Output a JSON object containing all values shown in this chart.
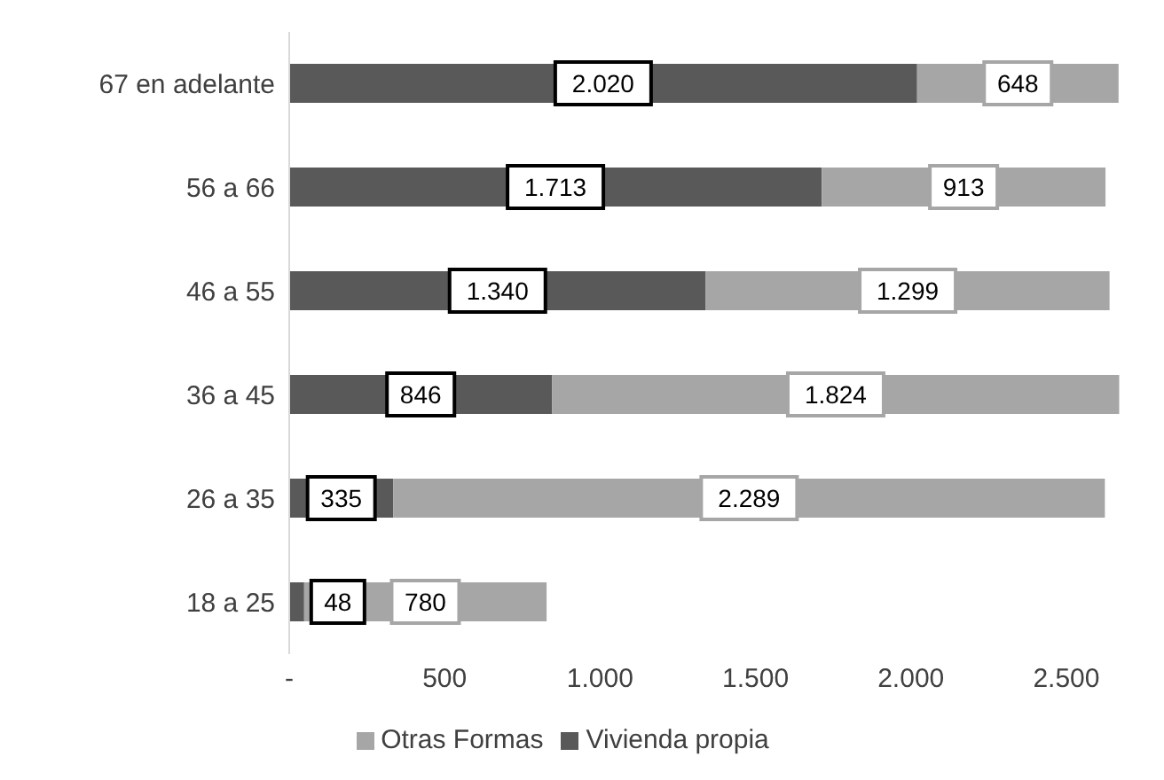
{
  "chart_data": {
    "type": "bar",
    "orientation": "horizontal",
    "stacked": true,
    "categories": [
      "67 en adelante",
      "56 a 66",
      "46 a 55",
      "36 a 45",
      "26 a 35",
      "18 a 25"
    ],
    "series": [
      {
        "name": "Vivienda propia",
        "color": "#595959",
        "values": [
          2020,
          1713,
          1340,
          846,
          335,
          48
        ],
        "value_labels": [
          "2.020",
          "1.713",
          "1.340",
          "846",
          "335",
          "48"
        ]
      },
      {
        "name": "Otras Formas",
        "color": "#a6a6a6",
        "values": [
          648,
          913,
          1299,
          1824,
          2289,
          780
        ],
        "value_labels": [
          "648",
          "913",
          "1.299",
          "1.824",
          "2.289",
          "780"
        ]
      }
    ],
    "xlim": [
      0,
      2700
    ],
    "xticks": [
      {
        "value": 0,
        "label": "-"
      },
      {
        "value": 500,
        "label": "500"
      },
      {
        "value": 1000,
        "label": "1.000"
      },
      {
        "value": 1500,
        "label": "1.500"
      },
      {
        "value": 2000,
        "label": "2.000"
      },
      {
        "value": 2500,
        "label": "2.500"
      }
    ],
    "grid": false,
    "legend": "bottom"
  }
}
